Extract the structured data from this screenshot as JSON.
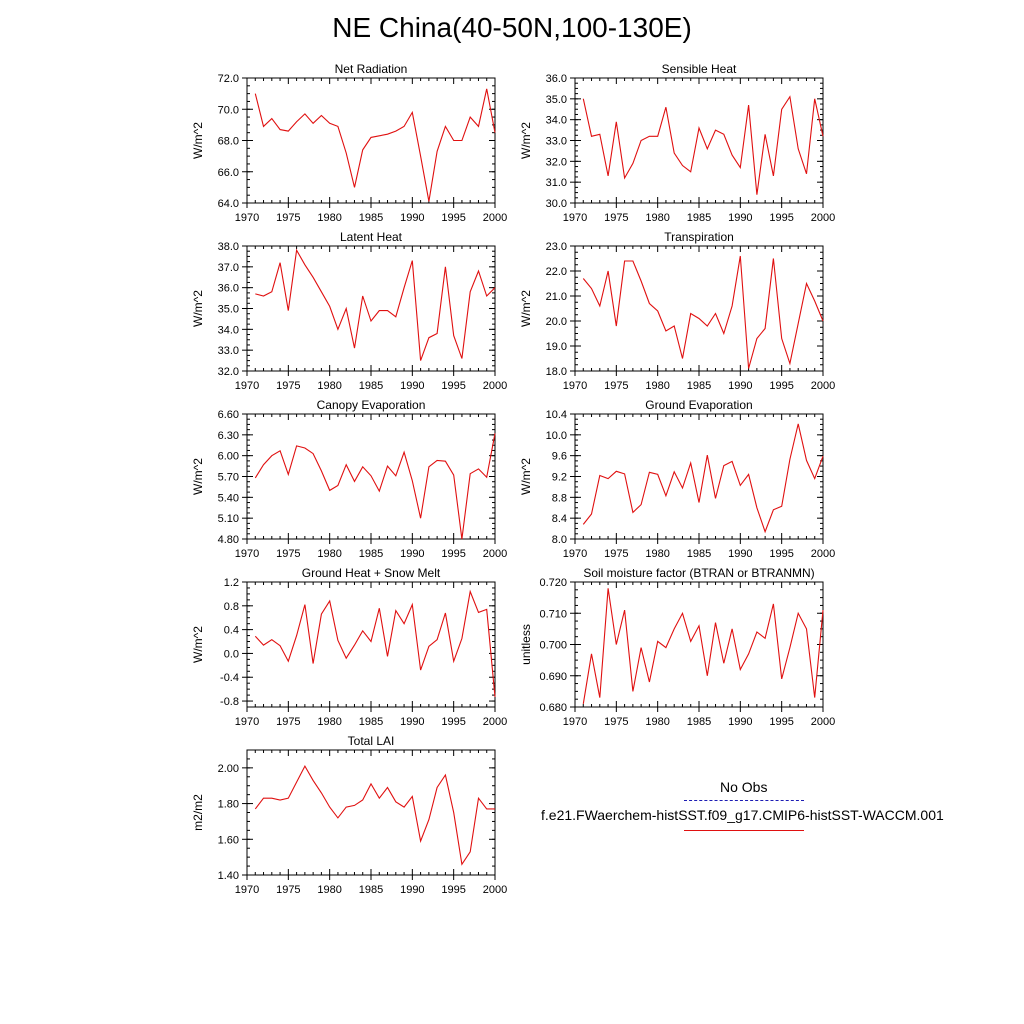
{
  "title": "NE China(40-50N,100-130E)",
  "legend": {
    "obs_label": "No Obs",
    "obs_color": "#1c1cb4",
    "model_label": "f.e21.FWaerchem-histSST.f09_g17.CMIP6-histSST-WACCM.001",
    "model_color": "#e01010"
  },
  "chart_data": [
    {
      "type": "line",
      "title": "Net Radiation",
      "ylabel": "W/m^2",
      "xlim": [
        1970,
        2000
      ],
      "ylim": [
        64.0,
        72.0
      ],
      "xticks": [
        "1970",
        "1975",
        "1980",
        "1985",
        "1990",
        "1995",
        "2000"
      ],
      "yticks": [
        "64.0",
        "66.0",
        "68.0",
        "70.0",
        "72.0"
      ],
      "x": [
        1971,
        1972,
        1973,
        1974,
        1975,
        1976,
        1977,
        1978,
        1979,
        1980,
        1981,
        1982,
        1983,
        1984,
        1985,
        1986,
        1987,
        1988,
        1989,
        1990,
        1991,
        1992,
        1993,
        1994,
        1995,
        1996,
        1997,
        1998,
        1999,
        2000
      ],
      "values": [
        71.0,
        68.9,
        69.4,
        68.7,
        68.6,
        69.2,
        69.7,
        69.1,
        69.6,
        69.1,
        68.9,
        67.2,
        65.0,
        67.4,
        68.2,
        68.3,
        68.4,
        68.6,
        68.9,
        69.8,
        67.0,
        64.1,
        67.3,
        68.9,
        68.0,
        68.0,
        69.5,
        68.9,
        71.3,
        68.5
      ]
    },
    {
      "type": "line",
      "title": "Sensible Heat",
      "ylabel": "W/m^2",
      "xlim": [
        1970,
        2000
      ],
      "ylim": [
        30.0,
        36.0
      ],
      "xticks": [
        "1970",
        "1975",
        "1980",
        "1985",
        "1990",
        "1995",
        "2000"
      ],
      "yticks": [
        "30.0",
        "31.0",
        "32.0",
        "33.0",
        "34.0",
        "35.0",
        "36.0"
      ],
      "x": [
        1971,
        1972,
        1973,
        1974,
        1975,
        1976,
        1977,
        1978,
        1979,
        1980,
        1981,
        1982,
        1983,
        1984,
        1985,
        1986,
        1987,
        1988,
        1989,
        1990,
        1991,
        1992,
        1993,
        1994,
        1995,
        1996,
        1997,
        1998,
        1999,
        2000
      ],
      "values": [
        35.0,
        33.2,
        33.3,
        31.3,
        33.9,
        31.2,
        31.9,
        33.0,
        33.2,
        33.2,
        34.6,
        32.4,
        31.8,
        31.5,
        33.6,
        32.6,
        33.5,
        33.3,
        32.3,
        31.7,
        34.7,
        30.4,
        33.3,
        31.3,
        34.5,
        35.1,
        32.6,
        31.4,
        35.0,
        33.2
      ]
    },
    {
      "type": "line",
      "title": "Latent Heat",
      "ylabel": "W/m^2",
      "xlim": [
        1970,
        2000
      ],
      "ylim": [
        32.0,
        38.0
      ],
      "xticks": [
        "1970",
        "1975",
        "1980",
        "1985",
        "1990",
        "1995",
        "2000"
      ],
      "yticks": [
        "32.0",
        "33.0",
        "34.0",
        "35.0",
        "36.0",
        "37.0",
        "38.0"
      ],
      "x": [
        1971,
        1972,
        1973,
        1974,
        1975,
        1976,
        1977,
        1978,
        1979,
        1980,
        1981,
        1982,
        1983,
        1984,
        1985,
        1986,
        1987,
        1988,
        1989,
        1990,
        1991,
        1992,
        1993,
        1994,
        1995,
        1996,
        1997,
        1998,
        1999,
        2000
      ],
      "values": [
        35.7,
        35.6,
        35.8,
        37.2,
        34.9,
        37.8,
        37.1,
        36.5,
        35.8,
        35.1,
        34.0,
        35.0,
        33.1,
        35.6,
        34.4,
        34.9,
        34.9,
        34.6,
        36.0,
        37.3,
        32.5,
        33.6,
        33.8,
        37.0,
        33.7,
        32.6,
        35.8,
        36.8,
        35.6,
        36.0
      ]
    },
    {
      "type": "line",
      "title": "Transpiration",
      "ylabel": "W/m^2",
      "xlim": [
        1970,
        2000
      ],
      "ylim": [
        18.0,
        23.0
      ],
      "xticks": [
        "1970",
        "1975",
        "1980",
        "1985",
        "1990",
        "1995",
        "2000"
      ],
      "yticks": [
        "18.0",
        "19.0",
        "20.0",
        "21.0",
        "22.0",
        "23.0"
      ],
      "x": [
        1971,
        1972,
        1973,
        1974,
        1975,
        1976,
        1977,
        1978,
        1979,
        1980,
        1981,
        1982,
        1983,
        1984,
        1985,
        1986,
        1987,
        1988,
        1989,
        1990,
        1991,
        1992,
        1993,
        1994,
        1995,
        1996,
        1997,
        1998,
        1999,
        2000
      ],
      "values": [
        21.7,
        21.3,
        20.6,
        22.0,
        19.8,
        22.4,
        22.4,
        21.6,
        20.7,
        20.4,
        19.6,
        19.8,
        18.5,
        20.3,
        20.1,
        19.8,
        20.3,
        19.5,
        20.6,
        22.6,
        18.1,
        19.3,
        19.7,
        22.5,
        19.3,
        18.3,
        19.9,
        21.5,
        20.8,
        20.0
      ]
    },
    {
      "type": "line",
      "title": "Canopy Evaporation",
      "ylabel": "W/m^2",
      "xlim": [
        1970,
        2000
      ],
      "ylim": [
        4.8,
        6.6
      ],
      "xticks": [
        "1970",
        "1975",
        "1980",
        "1985",
        "1990",
        "1995",
        "2000"
      ],
      "yticks": [
        "4.80",
        "5.10",
        "5.40",
        "5.70",
        "6.00",
        "6.30",
        "6.60"
      ],
      "x": [
        1971,
        1972,
        1973,
        1974,
        1975,
        1976,
        1977,
        1978,
        1979,
        1980,
        1981,
        1982,
        1983,
        1984,
        1985,
        1986,
        1987,
        1988,
        1989,
        1990,
        1991,
        1992,
        1993,
        1994,
        1995,
        1996,
        1997,
        1998,
        1999,
        2000
      ],
      "values": [
        5.68,
        5.87,
        6.0,
        6.07,
        5.73,
        6.14,
        6.11,
        6.03,
        5.78,
        5.5,
        5.57,
        5.87,
        5.63,
        5.84,
        5.71,
        5.49,
        5.85,
        5.71,
        6.05,
        5.64,
        5.1,
        5.84,
        5.93,
        5.92,
        5.72,
        4.8,
        5.74,
        5.81,
        5.69,
        6.32
      ]
    },
    {
      "type": "line",
      "title": "Ground Evaporation",
      "ylabel": "W/m^2",
      "xlim": [
        1970,
        2000
      ],
      "ylim": [
        8.0,
        10.4
      ],
      "xticks": [
        "1970",
        "1975",
        "1980",
        "1985",
        "1990",
        "1995",
        "2000"
      ],
      "yticks": [
        "8.0",
        "8.4",
        "8.8",
        "9.2",
        "9.6",
        "10.0",
        "10.4"
      ],
      "x": [
        1971,
        1972,
        1973,
        1974,
        1975,
        1976,
        1977,
        1978,
        1979,
        1980,
        1981,
        1982,
        1983,
        1984,
        1985,
        1986,
        1987,
        1988,
        1989,
        1990,
        1991,
        1992,
        1993,
        1994,
        1995,
        1996,
        1997,
        1998,
        1999,
        2000
      ],
      "values": [
        8.28,
        8.48,
        9.22,
        9.16,
        9.3,
        9.25,
        8.51,
        8.66,
        9.28,
        9.24,
        8.83,
        9.29,
        8.98,
        9.46,
        8.7,
        9.61,
        8.78,
        9.41,
        9.49,
        9.03,
        9.24,
        8.6,
        8.14,
        8.56,
        8.63,
        9.53,
        10.21,
        9.51,
        9.16,
        9.59
      ]
    },
    {
      "type": "line",
      "title": "Ground Heat + Snow Melt",
      "ylabel": "W/m^2",
      "xlim": [
        1970,
        2000
      ],
      "ylim": [
        -0.9,
        1.2
      ],
      "xticks": [
        "1970",
        "1975",
        "1980",
        "1985",
        "1990",
        "1995",
        "2000"
      ],
      "yticks": [
        "-0.8",
        "-0.4",
        "0.0",
        "0.4",
        "0.8",
        "1.2"
      ],
      "x": [
        1971,
        1972,
        1973,
        1974,
        1975,
        1976,
        1977,
        1978,
        1979,
        1980,
        1981,
        1982,
        1983,
        1984,
        1985,
        1986,
        1987,
        1988,
        1989,
        1990,
        1991,
        1992,
        1993,
        1994,
        1995,
        1996,
        1997,
        1998,
        1999,
        2000
      ],
      "values": [
        0.29,
        0.14,
        0.23,
        0.13,
        -0.13,
        0.3,
        0.82,
        -0.17,
        0.66,
        0.88,
        0.22,
        -0.08,
        0.14,
        0.38,
        0.2,
        0.76,
        -0.05,
        0.72,
        0.5,
        0.82,
        -0.28,
        0.12,
        0.23,
        0.68,
        -0.13,
        0.25,
        1.04,
        0.69,
        0.74,
        -0.73
      ]
    },
    {
      "type": "line",
      "title": "Soil moisture factor (BTRAN or BTRANMN)",
      "ylabel": "unitless",
      "xlim": [
        1970,
        2000
      ],
      "ylim": [
        0.68,
        0.72
      ],
      "xticks": [
        "1970",
        "1975",
        "1980",
        "1985",
        "1990",
        "1995",
        "2000"
      ],
      "yticks": [
        "0.680",
        "0.690",
        "0.700",
        "0.710",
        "0.720"
      ],
      "x": [
        1971,
        1972,
        1973,
        1974,
        1975,
        1976,
        1977,
        1978,
        1979,
        1980,
        1981,
        1982,
        1983,
        1984,
        1985,
        1986,
        1987,
        1988,
        1989,
        1990,
        1991,
        1992,
        1993,
        1994,
        1995,
        1996,
        1997,
        1998,
        1999,
        2000
      ],
      "values": [
        0.681,
        0.697,
        0.683,
        0.718,
        0.7,
        0.711,
        0.685,
        0.699,
        0.688,
        0.701,
        0.699,
        0.705,
        0.71,
        0.701,
        0.706,
        0.69,
        0.707,
        0.694,
        0.705,
        0.692,
        0.697,
        0.704,
        0.702,
        0.713,
        0.689,
        0.699,
        0.71,
        0.705,
        0.683,
        0.711
      ]
    },
    {
      "type": "line",
      "title": "Total LAI",
      "ylabel": "m2/m2",
      "xlim": [
        1970,
        2000
      ],
      "ylim": [
        1.4,
        2.1
      ],
      "xticks": [
        "1970",
        "1975",
        "1980",
        "1985",
        "1990",
        "1995",
        "2000"
      ],
      "yticks": [
        "1.40",
        "1.60",
        "1.80",
        "2.00"
      ],
      "x": [
        1971,
        1972,
        1973,
        1974,
        1975,
        1976,
        1977,
        1978,
        1979,
        1980,
        1981,
        1982,
        1983,
        1984,
        1985,
        1986,
        1987,
        1988,
        1989,
        1990,
        1991,
        1992,
        1993,
        1994,
        1995,
        1996,
        1997,
        1998,
        1999,
        2000
      ],
      "values": [
        1.77,
        1.83,
        1.83,
        1.82,
        1.83,
        1.92,
        2.01,
        1.93,
        1.86,
        1.78,
        1.72,
        1.78,
        1.79,
        1.82,
        1.91,
        1.83,
        1.89,
        1.81,
        1.78,
        1.84,
        1.59,
        1.71,
        1.89,
        1.96,
        1.75,
        1.46,
        1.53,
        1.83,
        1.77,
        1.77
      ]
    }
  ]
}
